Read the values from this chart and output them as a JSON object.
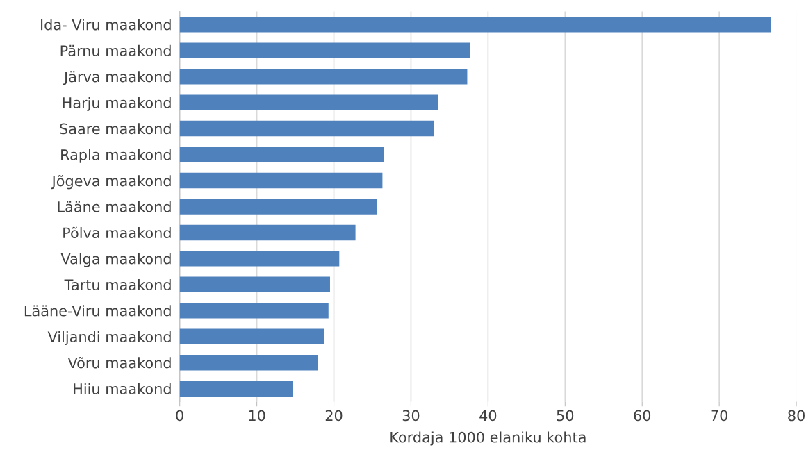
{
  "chart_data": {
    "type": "bar",
    "orientation": "horizontal",
    "xlabel": "Kordaja 1000 elaniku kohta",
    "categories": [
      "Ida- Viru maakond",
      "Pärnu maakond",
      "Järva maakond",
      "Harju maakond",
      "Saare maakond",
      "Rapla maakond",
      "Jõgeva maakond",
      "Lääne maakond",
      "Põlva maakond",
      "Valga maakond",
      "Tartu maakond",
      "Lääne-Viru maakond",
      "Viljandi maakond",
      "Võru maakond",
      "Hiiu maakond"
    ],
    "values": [
      76.7,
      37.7,
      37.3,
      33.5,
      33.0,
      26.5,
      26.3,
      25.6,
      22.8,
      20.7,
      19.5,
      19.3,
      18.7,
      17.9,
      14.7
    ],
    "color": "#4f81bd",
    "xlim": [
      0,
      80
    ],
    "xticks": [
      0,
      10,
      20,
      30,
      40,
      50,
      60,
      70,
      80
    ],
    "grid": "x"
  }
}
